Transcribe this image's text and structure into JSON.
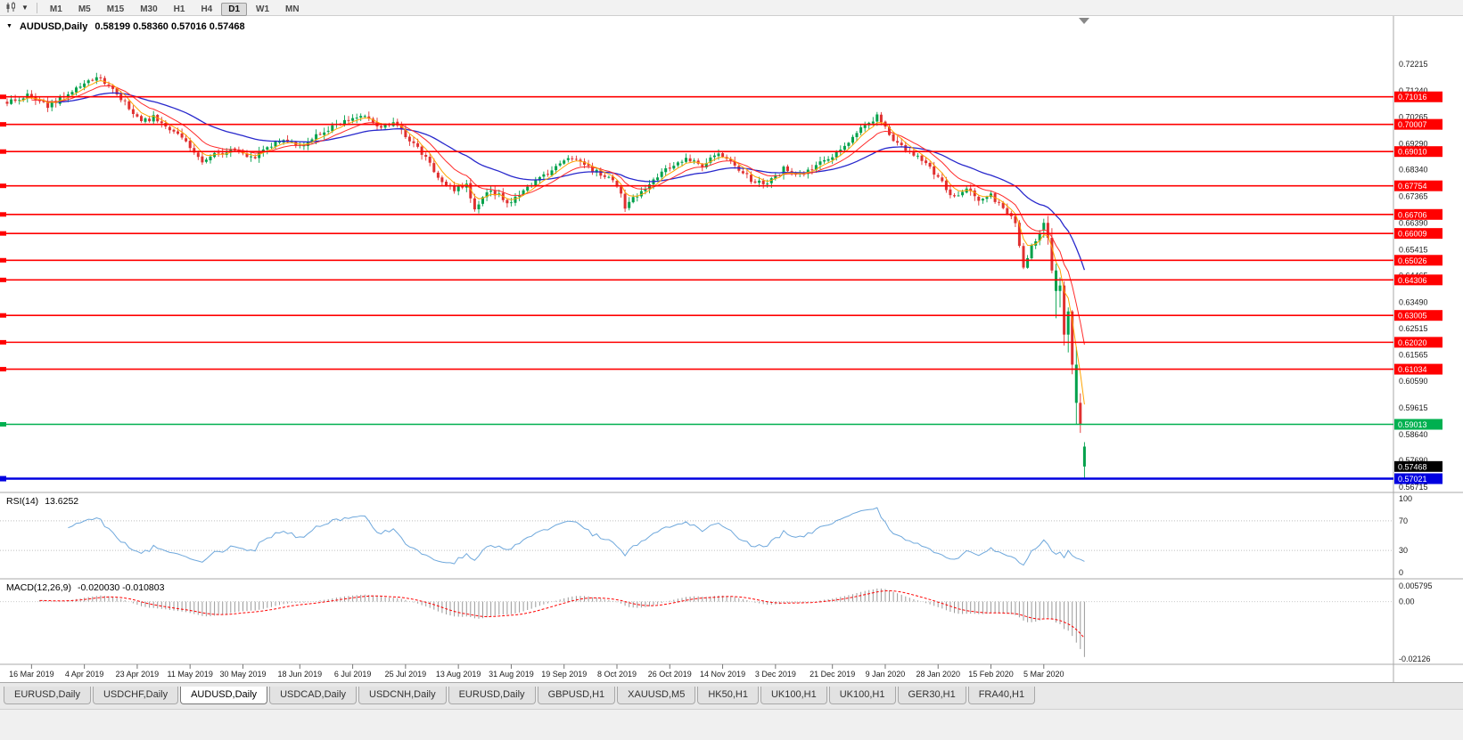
{
  "toolbar": {
    "timeframes": [
      "M1",
      "M5",
      "M15",
      "M30",
      "H1",
      "H4",
      "D1",
      "W1",
      "MN"
    ],
    "active_timeframe": "D1"
  },
  "chart": {
    "collapse_icon": "▼",
    "title": "AUDUSD,Daily",
    "ohlc_text": "0.58199 0.58360 0.57016 0.57468"
  },
  "indicators": {
    "rsi_label": "RSI(14)",
    "rsi_value": "13.6252",
    "macd_label": "MACD(12,26,9)",
    "macd_values": "-0.020030 -0.010803"
  },
  "chart_data": {
    "type": "candlestick",
    "symbol": "AUDUSD",
    "period": "Daily",
    "quote": {
      "open": 0.58199,
      "high": 0.5836,
      "low": 0.57016,
      "close": 0.57468
    },
    "y_axis_labels": [
      "0.72215",
      "0.71240",
      "0.70265",
      "0.69290",
      "0.68340",
      "0.67365",
      "0.66390",
      "0.65415",
      "0.64465",
      "0.63490",
      "0.62515",
      "0.61565",
      "0.60590",
      "0.59615",
      "0.58640",
      "0.57690",
      "0.56715"
    ],
    "x_labels": [
      {
        "label": "16 Mar 2019",
        "bar": 6
      },
      {
        "label": "4 Apr 2019",
        "bar": 19
      },
      {
        "label": "23 Apr 2019",
        "bar": 32
      },
      {
        "label": "11 May 2019",
        "bar": 45
      },
      {
        "label": "30 May 2019",
        "bar": 58
      },
      {
        "label": "18 Jun 2019",
        "bar": 72
      },
      {
        "label": "6 Jul 2019",
        "bar": 85
      },
      {
        "label": "25 Jul 2019",
        "bar": 98
      },
      {
        "label": "13 Aug 2019",
        "bar": 111
      },
      {
        "label": "31 Aug 2019",
        "bar": 124
      },
      {
        "label": "19 Sep 2019",
        "bar": 137
      },
      {
        "label": "8 Oct 2019",
        "bar": 150
      },
      {
        "label": "26 Oct 2019",
        "bar": 163
      },
      {
        "label": "14 Nov 2019",
        "bar": 176
      },
      {
        "label": "3 Dec 2019",
        "bar": 189
      },
      {
        "label": "21 Dec 2019",
        "bar": 203
      },
      {
        "label": "9 Jan 2020",
        "bar": 216
      },
      {
        "label": "28 Jan 2020",
        "bar": 229
      },
      {
        "label": "15 Feb 2020",
        "bar": 242
      },
      {
        "label": "5 Mar 2020",
        "bar": 255
      }
    ],
    "h_lines": [
      {
        "price": 0.71016
      },
      {
        "price": 0.70007
      },
      {
        "price": 0.6901
      },
      {
        "price": 0.67754
      },
      {
        "price": 0.66706
      },
      {
        "price": 0.66009
      },
      {
        "price": 0.65026
      },
      {
        "price": 0.64306
      },
      {
        "price": 0.63005
      },
      {
        "price": 0.6202
      },
      {
        "price": 0.61034
      }
    ],
    "support_line": {
      "price": 0.59013,
      "color": "#00B050"
    },
    "bid_line": {
      "price": 0.57021,
      "color": "#0000E0"
    },
    "current_price": {
      "price": 0.57468,
      "label": "0.57468"
    },
    "anchors": [
      [
        0,
        0.7085
      ],
      [
        5,
        0.7105
      ],
      [
        10,
        0.7068
      ],
      [
        14,
        0.71
      ],
      [
        18,
        0.714
      ],
      [
        22,
        0.7172
      ],
      [
        26,
        0.7135
      ],
      [
        30,
        0.706
      ],
      [
        33,
        0.7005
      ],
      [
        36,
        0.703
      ],
      [
        40,
        0.6985
      ],
      [
        44,
        0.693
      ],
      [
        48,
        0.6866
      ],
      [
        52,
        0.6895
      ],
      [
        56,
        0.6908
      ],
      [
        60,
        0.6875
      ],
      [
        64,
        0.692
      ],
      [
        68,
        0.6952
      ],
      [
        72,
        0.6918
      ],
      [
        76,
        0.6965
      ],
      [
        80,
        0.699
      ],
      [
        84,
        0.7018
      ],
      [
        88,
        0.704
      ],
      [
        91,
        0.6988
      ],
      [
        95,
        0.7008
      ],
      [
        99,
        0.6945
      ],
      [
        103,
        0.688
      ],
      [
        107,
        0.6792
      ],
      [
        110,
        0.6758
      ],
      [
        113,
        0.6785
      ],
      [
        115,
        0.668
      ],
      [
        118,
        0.6755
      ],
      [
        121,
        0.6738
      ],
      [
        124,
        0.6712
      ],
      [
        128,
        0.6768
      ],
      [
        132,
        0.6808
      ],
      [
        136,
        0.686
      ],
      [
        139,
        0.6878
      ],
      [
        143,
        0.684
      ],
      [
        147,
        0.6812
      ],
      [
        150,
        0.6782
      ],
      [
        152,
        0.67
      ],
      [
        155,
        0.6745
      ],
      [
        159,
        0.68
      ],
      [
        163,
        0.6842
      ],
      [
        167,
        0.688
      ],
      [
        171,
        0.6852
      ],
      [
        175,
        0.6892
      ],
      [
        179,
        0.6848
      ],
      [
        183,
        0.6795
      ],
      [
        187,
        0.6782
      ],
      [
        191,
        0.6838
      ],
      [
        195,
        0.6812
      ],
      [
        199,
        0.6852
      ],
      [
        203,
        0.6888
      ],
      [
        207,
        0.694
      ],
      [
        210,
        0.6985
      ],
      [
        214,
        0.7028
      ],
      [
        218,
        0.6948
      ],
      [
        222,
        0.6898
      ],
      [
        226,
        0.6858
      ],
      [
        230,
        0.6788
      ],
      [
        233,
        0.6732
      ],
      [
        236,
        0.6768
      ],
      [
        239,
        0.6712
      ],
      [
        242,
        0.6742
      ],
      [
        245,
        0.6688
      ],
      [
        248,
        0.664
      ],
      [
        250,
        0.648
      ],
      [
        252,
        0.655
      ],
      [
        254,
        0.6595
      ],
      [
        255,
        0.6612
      ]
    ],
    "tail_candles": [
      {
        "o": 0.6615,
        "h": 0.6655,
        "l": 0.6585,
        "c": 0.664
      },
      {
        "o": 0.664,
        "h": 0.6665,
        "l": 0.656,
        "c": 0.6585
      },
      {
        "o": 0.6585,
        "h": 0.662,
        "l": 0.6455,
        "c": 0.6465
      },
      {
        "o": 0.6465,
        "h": 0.649,
        "l": 0.629,
        "c": 0.639,
        "col": "g"
      },
      {
        "o": 0.639,
        "h": 0.644,
        "l": 0.633,
        "c": 0.641
      },
      {
        "o": 0.641,
        "h": 0.6425,
        "l": 0.619,
        "c": 0.623
      },
      {
        "o": 0.623,
        "h": 0.633,
        "l": 0.6165,
        "c": 0.6315,
        "col": "g"
      },
      {
        "o": 0.6315,
        "h": 0.632,
        "l": 0.6085,
        "c": 0.612
      },
      {
        "o": 0.612,
        "h": 0.6185,
        "l": 0.5901,
        "c": 0.598,
        "col": "g"
      },
      {
        "o": 0.598,
        "h": 0.6015,
        "l": 0.587,
        "c": 0.59
      },
      {
        "o": 0.58199,
        "h": 0.5836,
        "l": 0.57016,
        "c": 0.57468,
        "col": "g"
      }
    ],
    "rsi": {
      "period": 14,
      "levels": [
        {
          "label": "100",
          "v": 100
        },
        {
          "label": "70",
          "v": 70
        },
        {
          "label": "30",
          "v": 30
        },
        {
          "label": "0",
          "v": 0
        }
      ],
      "dotted": [
        70,
        30
      ]
    },
    "macd": {
      "axis": [
        {
          "label": "0.005795",
          "v": 0.005795
        },
        {
          "label": "0.00",
          "v": 0
        },
        {
          "label": "-0.02126",
          "v": -0.02126
        }
      ]
    },
    "colors": {
      "up": "#00A14B",
      "down": "#E03030",
      "hline": "#FF0000",
      "ma_fast": "#FFA400",
      "ma_mid": "#FF2A2A",
      "ma_slow": "#2828CC",
      "rsi": "#6FA8DC",
      "macd_hist": "#9A9A9A",
      "macd_signal": "#FF0000"
    }
  },
  "tabs": {
    "items": [
      "EURUSD,Daily",
      "USDCHF,Daily",
      "AUDUSD,Daily",
      "USDCAD,Daily",
      "USDCNH,Daily",
      "EURUSD,Daily",
      "GBPUSD,H1",
      "XAUUSD,M5",
      "HK50,H1",
      "UK100,H1",
      "UK100,H1",
      "GER30,H1",
      "FRA40,H1"
    ],
    "active_index": 2
  }
}
